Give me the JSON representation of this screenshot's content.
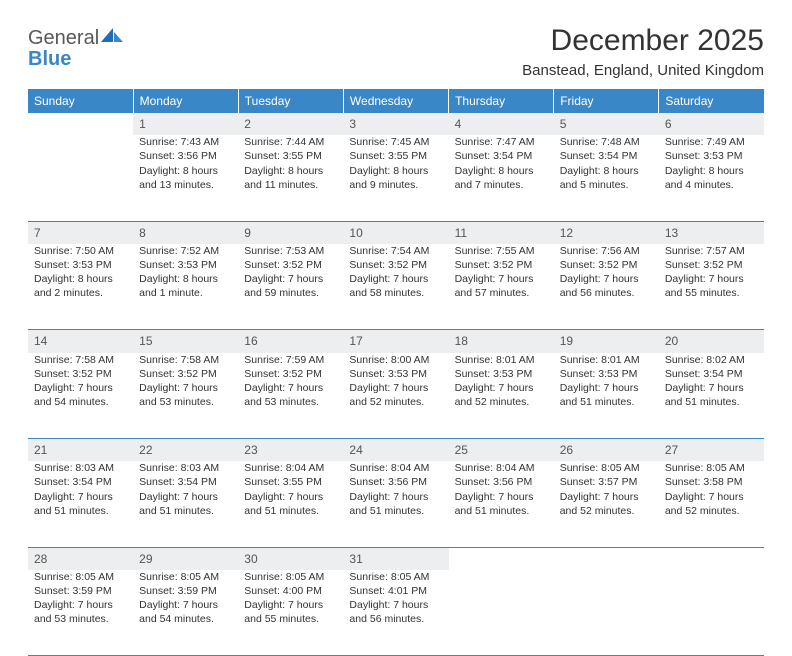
{
  "logo": {
    "general": "General",
    "blue": "Blue"
  },
  "title": "December 2025",
  "location": "Banstead, England, United Kingdom",
  "colors": {
    "header_bg": "#3a87c8",
    "header_text": "#ffffff",
    "daynum_bg": "#eceeef",
    "text": "#333333",
    "rule": "#3a87c8",
    "logo_gray": "#57585a",
    "logo_blue": "#3a87c8"
  },
  "weekdays": [
    "Sunday",
    "Monday",
    "Tuesday",
    "Wednesday",
    "Thursday",
    "Friday",
    "Saturday"
  ],
  "weeks": [
    {
      "nums": [
        "",
        "1",
        "2",
        "3",
        "4",
        "5",
        "6"
      ],
      "cells": [
        null,
        {
          "sr": "Sunrise: 7:43 AM",
          "ss": "Sunset: 3:56 PM",
          "dl1": "Daylight: 8 hours",
          "dl2": "and 13 minutes."
        },
        {
          "sr": "Sunrise: 7:44 AM",
          "ss": "Sunset: 3:55 PM",
          "dl1": "Daylight: 8 hours",
          "dl2": "and 11 minutes."
        },
        {
          "sr": "Sunrise: 7:45 AM",
          "ss": "Sunset: 3:55 PM",
          "dl1": "Daylight: 8 hours",
          "dl2": "and 9 minutes."
        },
        {
          "sr": "Sunrise: 7:47 AM",
          "ss": "Sunset: 3:54 PM",
          "dl1": "Daylight: 8 hours",
          "dl2": "and 7 minutes."
        },
        {
          "sr": "Sunrise: 7:48 AM",
          "ss": "Sunset: 3:54 PM",
          "dl1": "Daylight: 8 hours",
          "dl2": "and 5 minutes."
        },
        {
          "sr": "Sunrise: 7:49 AM",
          "ss": "Sunset: 3:53 PM",
          "dl1": "Daylight: 8 hours",
          "dl2": "and 4 minutes."
        }
      ]
    },
    {
      "nums": [
        "7",
        "8",
        "9",
        "10",
        "11",
        "12",
        "13"
      ],
      "cells": [
        {
          "sr": "Sunrise: 7:50 AM",
          "ss": "Sunset: 3:53 PM",
          "dl1": "Daylight: 8 hours",
          "dl2": "and 2 minutes."
        },
        {
          "sr": "Sunrise: 7:52 AM",
          "ss": "Sunset: 3:53 PM",
          "dl1": "Daylight: 8 hours",
          "dl2": "and 1 minute."
        },
        {
          "sr": "Sunrise: 7:53 AM",
          "ss": "Sunset: 3:52 PM",
          "dl1": "Daylight: 7 hours",
          "dl2": "and 59 minutes."
        },
        {
          "sr": "Sunrise: 7:54 AM",
          "ss": "Sunset: 3:52 PM",
          "dl1": "Daylight: 7 hours",
          "dl2": "and 58 minutes."
        },
        {
          "sr": "Sunrise: 7:55 AM",
          "ss": "Sunset: 3:52 PM",
          "dl1": "Daylight: 7 hours",
          "dl2": "and 57 minutes."
        },
        {
          "sr": "Sunrise: 7:56 AM",
          "ss": "Sunset: 3:52 PM",
          "dl1": "Daylight: 7 hours",
          "dl2": "and 56 minutes."
        },
        {
          "sr": "Sunrise: 7:57 AM",
          "ss": "Sunset: 3:52 PM",
          "dl1": "Daylight: 7 hours",
          "dl2": "and 55 minutes."
        }
      ]
    },
    {
      "nums": [
        "14",
        "15",
        "16",
        "17",
        "18",
        "19",
        "20"
      ],
      "cells": [
        {
          "sr": "Sunrise: 7:58 AM",
          "ss": "Sunset: 3:52 PM",
          "dl1": "Daylight: 7 hours",
          "dl2": "and 54 minutes."
        },
        {
          "sr": "Sunrise: 7:58 AM",
          "ss": "Sunset: 3:52 PM",
          "dl1": "Daylight: 7 hours",
          "dl2": "and 53 minutes."
        },
        {
          "sr": "Sunrise: 7:59 AM",
          "ss": "Sunset: 3:52 PM",
          "dl1": "Daylight: 7 hours",
          "dl2": "and 53 minutes."
        },
        {
          "sr": "Sunrise: 8:00 AM",
          "ss": "Sunset: 3:53 PM",
          "dl1": "Daylight: 7 hours",
          "dl2": "and 52 minutes."
        },
        {
          "sr": "Sunrise: 8:01 AM",
          "ss": "Sunset: 3:53 PM",
          "dl1": "Daylight: 7 hours",
          "dl2": "and 52 minutes."
        },
        {
          "sr": "Sunrise: 8:01 AM",
          "ss": "Sunset: 3:53 PM",
          "dl1": "Daylight: 7 hours",
          "dl2": "and 51 minutes."
        },
        {
          "sr": "Sunrise: 8:02 AM",
          "ss": "Sunset: 3:54 PM",
          "dl1": "Daylight: 7 hours",
          "dl2": "and 51 minutes."
        }
      ]
    },
    {
      "nums": [
        "21",
        "22",
        "23",
        "24",
        "25",
        "26",
        "27"
      ],
      "cells": [
        {
          "sr": "Sunrise: 8:03 AM",
          "ss": "Sunset: 3:54 PM",
          "dl1": "Daylight: 7 hours",
          "dl2": "and 51 minutes."
        },
        {
          "sr": "Sunrise: 8:03 AM",
          "ss": "Sunset: 3:54 PM",
          "dl1": "Daylight: 7 hours",
          "dl2": "and 51 minutes."
        },
        {
          "sr": "Sunrise: 8:04 AM",
          "ss": "Sunset: 3:55 PM",
          "dl1": "Daylight: 7 hours",
          "dl2": "and 51 minutes."
        },
        {
          "sr": "Sunrise: 8:04 AM",
          "ss": "Sunset: 3:56 PM",
          "dl1": "Daylight: 7 hours",
          "dl2": "and 51 minutes."
        },
        {
          "sr": "Sunrise: 8:04 AM",
          "ss": "Sunset: 3:56 PM",
          "dl1": "Daylight: 7 hours",
          "dl2": "and 51 minutes."
        },
        {
          "sr": "Sunrise: 8:05 AM",
          "ss": "Sunset: 3:57 PM",
          "dl1": "Daylight: 7 hours",
          "dl2": "and 52 minutes."
        },
        {
          "sr": "Sunrise: 8:05 AM",
          "ss": "Sunset: 3:58 PM",
          "dl1": "Daylight: 7 hours",
          "dl2": "and 52 minutes."
        }
      ]
    },
    {
      "nums": [
        "28",
        "29",
        "30",
        "31",
        "",
        "",
        ""
      ],
      "cells": [
        {
          "sr": "Sunrise: 8:05 AM",
          "ss": "Sunset: 3:59 PM",
          "dl1": "Daylight: 7 hours",
          "dl2": "and 53 minutes."
        },
        {
          "sr": "Sunrise: 8:05 AM",
          "ss": "Sunset: 3:59 PM",
          "dl1": "Daylight: 7 hours",
          "dl2": "and 54 minutes."
        },
        {
          "sr": "Sunrise: 8:05 AM",
          "ss": "Sunset: 4:00 PM",
          "dl1": "Daylight: 7 hours",
          "dl2": "and 55 minutes."
        },
        {
          "sr": "Sunrise: 8:05 AM",
          "ss": "Sunset: 4:01 PM",
          "dl1": "Daylight: 7 hours",
          "dl2": "and 56 minutes."
        },
        null,
        null,
        null
      ]
    }
  ]
}
